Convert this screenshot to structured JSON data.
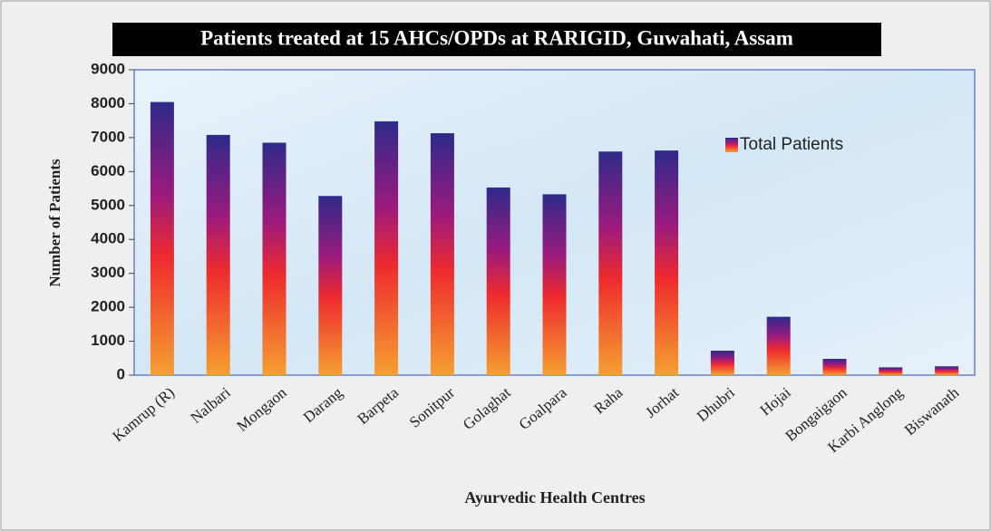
{
  "chart_data": {
    "type": "bar",
    "title": "Patients treated at 15 AHCs/OPDs at RARIGID,  Guwahati,  Assam",
    "x_label": "Ayurvedic Health Centres",
    "y_label": "Number of Patients",
    "categories": [
      "Kamrup (R)",
      "Nalbari",
      "Mongaon",
      "Darang",
      "Barpeta",
      "Sonitpur",
      "Golaghat",
      "Goalpara",
      "Raha",
      "Jorhat",
      "Dhubri",
      "Hojai",
      "Bongaigaon",
      "Karbi Anglong",
      "Biswanath"
    ],
    "series": [
      {
        "name": "Total Patients",
        "gradient": [
          "#2e2a8a",
          "#9a1a7e",
          "#ee2a2e",
          "#f5a030"
        ],
        "values": [
          8050,
          7080,
          6850,
          5280,
          7480,
          7130,
          5530,
          5330,
          6590,
          6620,
          720,
          1720,
          480,
          230,
          260
        ]
      }
    ],
    "ylim": [
      0,
      9000
    ],
    "yticks": [
      0,
      1000,
      2000,
      3000,
      4000,
      5000,
      6000,
      7000,
      8000,
      9000
    ],
    "legend": "top-right"
  }
}
